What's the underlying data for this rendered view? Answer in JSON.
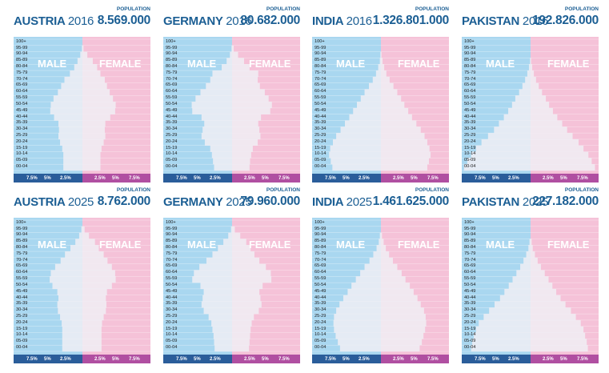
{
  "labels": {
    "population": "POPULATION",
    "male": "MALE",
    "female": "FEMALE",
    "ticks_left": [
      "7.5%",
      "5%",
      "2.5%"
    ],
    "ticks_right": [
      "2.5%",
      "5%",
      "7.5%"
    ]
  },
  "age_groups": [
    "100+",
    "95-99",
    "90-94",
    "85-89",
    "80-84",
    "75-79",
    "70-74",
    "65-69",
    "60-64",
    "55-59",
    "50-54",
    "45-49",
    "40-44",
    "35-39",
    "30-34",
    "25-29",
    "20-24",
    "15-19",
    "10-14",
    "05-09",
    "00-04"
  ],
  "colors": {
    "male_bg": "#a9d7f0",
    "female_bg": "#f5c2d8",
    "bar_light": "#f0eef5",
    "title_blue": "#1c5f94",
    "axis_male": "#2a5d9a",
    "axis_female": "#b04fa1"
  },
  "chart_data": [
    {
      "type": "bar",
      "country": "AUSTRIA",
      "year": "2016",
      "population": "8.569.000",
      "categories": [
        "100+",
        "95-99",
        "90-94",
        "85-89",
        "80-84",
        "75-79",
        "70-74",
        "65-69",
        "60-64",
        "55-59",
        "50-54",
        "45-49",
        "40-44",
        "35-39",
        "30-34",
        "25-29",
        "20-24",
        "15-19",
        "10-14",
        "05-09",
        "00-04"
      ],
      "series": [
        {
          "name": "MALE",
          "values": [
            0,
            0.1,
            0.4,
            0.9,
            1.5,
            2.3,
            3.3,
            3.9,
            4.5,
            5.3,
            5.8,
            5.9,
            5.2,
            4.4,
            4.3,
            4.4,
            4.1,
            3.7,
            3.5,
            3.5,
            3.5
          ]
        },
        {
          "name": "FEMALE",
          "values": [
            0,
            0.2,
            0.9,
            1.9,
            2.7,
            3.3,
            4.1,
            4.5,
            5.0,
            5.6,
            6.1,
            6.0,
            5.1,
            4.2,
            4.1,
            4.2,
            3.9,
            3.5,
            3.3,
            3.3,
            3.3
          ]
        }
      ]
    },
    {
      "type": "bar",
      "country": "GERMANY",
      "year": "2016",
      "population": "80.682.000",
      "categories": [
        "100+",
        "95-99",
        "90-94",
        "85-89",
        "80-84",
        "75-79",
        "70-74",
        "65-69",
        "60-64",
        "55-59",
        "50-54",
        "45-49",
        "40-44",
        "35-39",
        "30-34",
        "25-29",
        "20-24",
        "15-19",
        "10-14",
        "05-09",
        "00-04"
      ],
      "series": [
        {
          "name": "MALE",
          "values": [
            0,
            0.1,
            0.4,
            1.0,
            1.9,
            3.6,
            4.0,
            4.8,
            5.8,
            6.7,
            7.4,
            7.3,
            5.6,
            5.1,
            5.4,
            5.6,
            5.0,
            4.0,
            3.7,
            3.5,
            3.3
          ]
        },
        {
          "name": "FEMALE",
          "values": [
            0,
            0.3,
            1.1,
            2.2,
            3.2,
            4.8,
            4.7,
            5.1,
            6.0,
            6.7,
            7.3,
            7.0,
            5.3,
            4.8,
            5.0,
            5.2,
            4.7,
            3.8,
            3.5,
            3.3,
            3.2
          ]
        }
      ]
    },
    {
      "type": "bar",
      "country": "INDIA",
      "year": "2016",
      "population": "1.326.801.000",
      "categories": [
        "100+",
        "95-99",
        "90-94",
        "85-89",
        "80-84",
        "75-79",
        "70-74",
        "65-69",
        "60-64",
        "55-59",
        "50-54",
        "45-49",
        "40-44",
        "35-39",
        "30-34",
        "25-29",
        "20-24",
        "15-19",
        "10-14",
        "05-09",
        "00-04"
      ],
      "series": [
        {
          "name": "MALE",
          "values": [
            0,
            0,
            0.1,
            0.2,
            0.5,
            0.9,
            1.5,
            2.2,
            3.0,
            3.7,
            4.4,
            5.1,
            5.8,
            6.6,
            7.4,
            8.2,
            8.8,
            9.3,
            9.5,
            9.2,
            8.9
          ]
        },
        {
          "name": "FEMALE",
          "values": [
            0,
            0,
            0.1,
            0.3,
            0.6,
            1.0,
            1.6,
            2.3,
            3.0,
            3.7,
            4.3,
            5.0,
            5.7,
            6.5,
            7.3,
            8.0,
            8.5,
            8.9,
            9.1,
            8.8,
            8.5
          ]
        }
      ]
    },
    {
      "type": "bar",
      "country": "PAKISTAN",
      "year": "2016",
      "population": "192.826.000",
      "categories": [
        "100+",
        "95-99",
        "90-94",
        "85-89",
        "80-84",
        "75-79",
        "70-74",
        "65-69",
        "60-64",
        "55-59",
        "50-54",
        "45-49",
        "40-44",
        "35-39",
        "30-34",
        "25-29",
        "20-24",
        "15-19",
        "10-14",
        "05-09",
        "00-04"
      ],
      "series": [
        {
          "name": "MALE",
          "values": [
            0,
            0,
            0,
            0.1,
            0.3,
            0.6,
            1.0,
            1.5,
            2.1,
            2.8,
            3.4,
            4.1,
            4.9,
            5.8,
            6.7,
            7.8,
            9.0,
            10.0,
            10.9,
            11.6,
            12.2
          ]
        },
        {
          "name": "FEMALE",
          "values": [
            0,
            0,
            0,
            0.1,
            0.3,
            0.6,
            1.0,
            1.5,
            2.1,
            2.8,
            3.4,
            4.1,
            4.9,
            5.8,
            6.7,
            7.7,
            8.8,
            9.7,
            10.6,
            11.2,
            11.8
          ]
        }
      ]
    },
    {
      "type": "bar",
      "country": "AUSTRIA",
      "year": "2025",
      "population": "8.762.000",
      "categories": [
        "100+",
        "95-99",
        "90-94",
        "85-89",
        "80-84",
        "75-79",
        "70-74",
        "65-69",
        "60-64",
        "55-59",
        "50-54",
        "45-49",
        "40-44",
        "35-39",
        "30-34",
        "25-29",
        "20-24",
        "15-19",
        "10-14",
        "05-09",
        "00-04"
      ],
      "series": [
        {
          "name": "MALE",
          "values": [
            0,
            0.2,
            0.6,
            1.3,
            2.2,
            3.2,
            4.0,
            5.0,
            5.8,
            6.0,
            5.5,
            4.6,
            4.4,
            4.6,
            4.5,
            4.1,
            3.8,
            3.7,
            3.7,
            3.7,
            3.7
          ]
        },
        {
          "name": "FEMALE",
          "values": [
            0,
            0.4,
            1.2,
            2.3,
            3.0,
            3.9,
            4.6,
            5.4,
            6.0,
            6.1,
            5.4,
            4.5,
            4.3,
            4.4,
            4.3,
            3.9,
            3.6,
            3.5,
            3.5,
            3.5,
            3.5
          ]
        }
      ]
    },
    {
      "type": "bar",
      "country": "GERMANY",
      "year": "2025",
      "population": "79.960.000",
      "categories": [
        "100+",
        "95-99",
        "90-94",
        "85-89",
        "80-84",
        "75-79",
        "70-74",
        "65-69",
        "60-64",
        "55-59",
        "50-54",
        "45-49",
        "40-44",
        "35-39",
        "30-34",
        "25-29",
        "20-24",
        "15-19",
        "10-14",
        "05-09",
        "00-04"
      ],
      "series": [
        {
          "name": "MALE",
          "values": [
            0,
            0.2,
            0.7,
            1.6,
            2.6,
            3.6,
            4.7,
            6.0,
            7.0,
            7.3,
            5.8,
            5.2,
            5.4,
            5.6,
            5.2,
            4.3,
            3.8,
            3.6,
            3.4,
            3.3,
            3.2
          ]
        },
        {
          "name": "FEMALE",
          "values": [
            0,
            0.5,
            1.5,
            2.6,
            3.4,
            4.1,
            5.0,
            6.2,
            7.1,
            7.2,
            5.6,
            5.0,
            5.2,
            5.4,
            4.9,
            4.0,
            3.6,
            3.4,
            3.3,
            3.2,
            3.1
          ]
        }
      ]
    },
    {
      "type": "bar",
      "country": "INDIA",
      "year": "2025",
      "population": "1.461.625.000",
      "categories": [
        "100+",
        "95-99",
        "90-94",
        "85-89",
        "80-84",
        "75-79",
        "70-74",
        "65-69",
        "60-64",
        "55-59",
        "50-54",
        "45-49",
        "40-44",
        "35-39",
        "30-34",
        "25-29",
        "20-24",
        "15-19",
        "10-14",
        "05-09",
        "00-04"
      ],
      "series": [
        {
          "name": "MALE",
          "values": [
            0,
            0,
            0.2,
            0.4,
            0.8,
            1.4,
            2.1,
            3.0,
            3.8,
            4.6,
            5.4,
            6.1,
            6.9,
            7.6,
            8.2,
            8.6,
            8.7,
            8.6,
            8.3,
            7.9,
            7.5
          ]
        },
        {
          "name": "FEMALE",
          "values": [
            0,
            0,
            0.2,
            0.5,
            0.9,
            1.5,
            2.2,
            3.0,
            3.8,
            4.5,
            5.3,
            6.0,
            6.7,
            7.3,
            7.9,
            8.2,
            8.3,
            8.1,
            7.8,
            7.5,
            7.1
          ]
        }
      ]
    },
    {
      "type": "bar",
      "country": "PAKISTAN",
      "year": "2025",
      "population": "227.182.000",
      "categories": [
        "100+",
        "95-99",
        "90-94",
        "85-89",
        "80-84",
        "75-79",
        "70-74",
        "65-69",
        "60-64",
        "55-59",
        "50-54",
        "45-49",
        "40-44",
        "35-39",
        "30-34",
        "25-29",
        "20-24",
        "15-19",
        "10-14",
        "05-09",
        "00-04"
      ],
      "series": [
        {
          "name": "MALE",
          "values": [
            0,
            0,
            0,
            0.2,
            0.4,
            0.8,
            1.3,
            1.9,
            2.6,
            3.3,
            4.0,
            4.8,
            5.6,
            6.6,
            7.6,
            8.6,
            9.5,
            10.0,
            10.4,
            10.7,
            10.9
          ]
        },
        {
          "name": "FEMALE",
          "values": [
            0,
            0,
            0,
            0.2,
            0.4,
            0.8,
            1.3,
            1.9,
            2.6,
            3.3,
            4.0,
            4.7,
            5.5,
            6.4,
            7.4,
            8.3,
            9.2,
            9.7,
            10.0,
            10.3,
            10.5
          ]
        }
      ]
    }
  ]
}
